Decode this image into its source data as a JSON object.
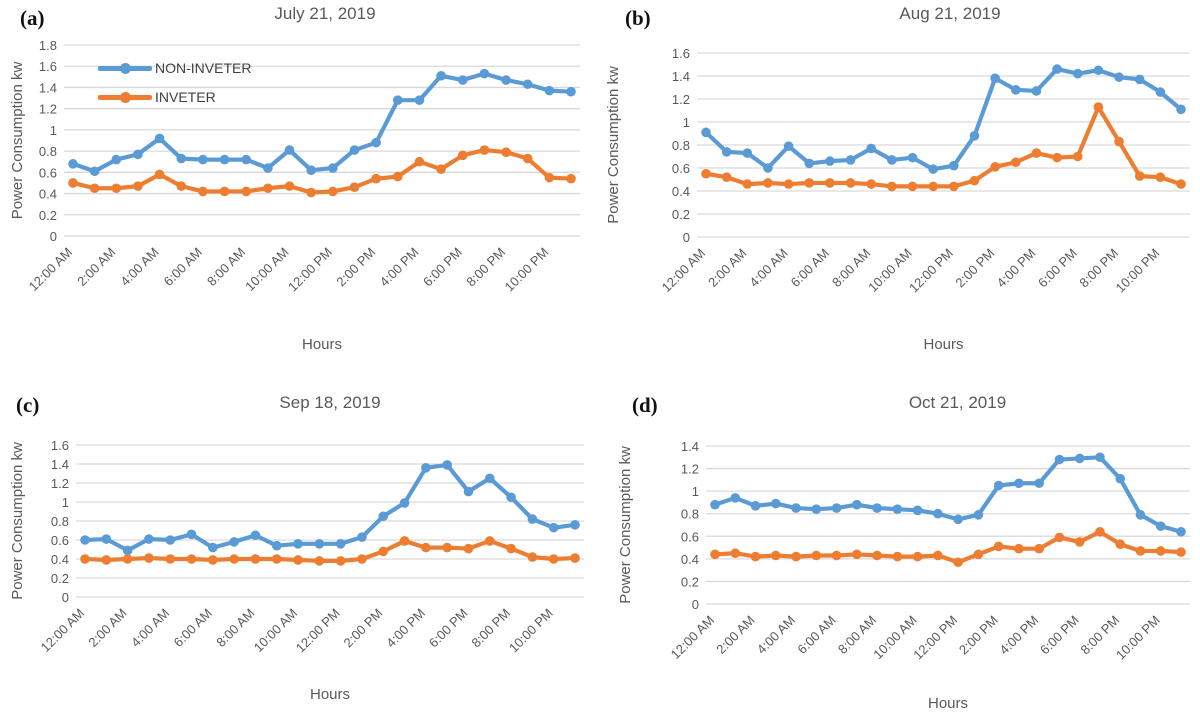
{
  "figure": {
    "background": "#ffffff",
    "grid_color": "#D9D9D9",
    "text_color": "#595959",
    "legend_text_color": "#404040"
  },
  "chart_data": [
    {
      "id": "a",
      "panel_label": "(a)",
      "type": "line",
      "title": "July 21, 2019",
      "xlabel": "Hours",
      "ylabel": "Power Consumption kw",
      "ylim": [
        0,
        1.8
      ],
      "ytick_step": 0.2,
      "grid": "horizontal",
      "legend_visible": true,
      "legend_position": "top-left-inside",
      "x_interval": "1 hour",
      "x_points": 24,
      "x_tick_labels": [
        "12:00 AM",
        "2:00 AM",
        "4:00 AM",
        "6:00 AM",
        "8:00 AM",
        "10:00 AM",
        "12:00 PM",
        "2:00 PM",
        "4:00 PM",
        "6:00 PM",
        "8:00 PM",
        "10:00 PM"
      ],
      "series": [
        {
          "name": "NON-INVETER",
          "color": "#5B9BD5",
          "values": [
            0.68,
            0.61,
            0.72,
            0.77,
            0.92,
            0.73,
            0.72,
            0.72,
            0.72,
            0.64,
            0.81,
            0.62,
            0.64,
            0.81,
            0.88,
            1.28,
            1.28,
            1.51,
            1.47,
            1.53,
            1.47,
            1.43,
            1.37,
            1.36
          ]
        },
        {
          "name": "INVETER",
          "color": "#ED7D31",
          "values": [
            0.5,
            0.45,
            0.45,
            0.47,
            0.58,
            0.47,
            0.42,
            0.42,
            0.42,
            0.45,
            0.47,
            0.41,
            0.42,
            0.46,
            0.54,
            0.56,
            0.7,
            0.63,
            0.76,
            0.81,
            0.79,
            0.73,
            0.55,
            0.54
          ]
        }
      ]
    },
    {
      "id": "b",
      "panel_label": "(b)",
      "type": "line",
      "title": "Aug 21, 2019",
      "xlabel": "Hours",
      "ylabel": "Power Consumption kw",
      "ylim": [
        0,
        1.6
      ],
      "ytick_step": 0.2,
      "grid": "horizontal",
      "legend_visible": false,
      "x_interval": "1 hour",
      "x_points": 24,
      "x_tick_labels": [
        "12:00 AM",
        "2:00 AM",
        "4:00 AM",
        "6:00 AM",
        "8:00 AM",
        "10:00 AM",
        "12:00 PM",
        "2:00 PM",
        "4:00 PM",
        "6:00 PM",
        "8:00 PM",
        "10:00 PM"
      ],
      "series": [
        {
          "name": "NON-INVETER",
          "color": "#5B9BD5",
          "values": [
            0.91,
            0.74,
            0.73,
            0.6,
            0.79,
            0.64,
            0.66,
            0.67,
            0.77,
            0.67,
            0.69,
            0.59,
            0.62,
            0.88,
            1.38,
            1.28,
            1.27,
            1.46,
            1.42,
            1.45,
            1.39,
            1.37,
            1.26,
            1.11
          ]
        },
        {
          "name": "INVETER",
          "color": "#ED7D31",
          "values": [
            0.55,
            0.52,
            0.46,
            0.47,
            0.46,
            0.47,
            0.47,
            0.47,
            0.46,
            0.44,
            0.44,
            0.44,
            0.44,
            0.49,
            0.61,
            0.65,
            0.73,
            0.69,
            0.7,
            1.13,
            0.83,
            0.53,
            0.52,
            0.46
          ]
        }
      ]
    },
    {
      "id": "c",
      "panel_label": "(c)",
      "type": "line",
      "title": "Sep 18, 2019",
      "xlabel": "Hours",
      "ylabel": "Power Consumption kw",
      "ylim": [
        0,
        1.6
      ],
      "ytick_step": 0.2,
      "grid": "horizontal",
      "legend_visible": false,
      "x_interval": "1 hour",
      "x_points": 24,
      "x_tick_labels": [
        "12:00 AM",
        "2:00 AM",
        "4:00 AM",
        "6:00 AM",
        "8:00 AM",
        "10:00 AM",
        "12:00 PM",
        "2:00 PM",
        "4:00 PM",
        "6:00 PM",
        "8:00 PM",
        "10:00 PM"
      ],
      "series": [
        {
          "name": "NON-INVETER",
          "color": "#5B9BD5",
          "values": [
            0.6,
            0.61,
            0.49,
            0.61,
            0.6,
            0.66,
            0.52,
            0.58,
            0.65,
            0.54,
            0.56,
            0.56,
            0.56,
            0.63,
            0.85,
            0.99,
            1.36,
            1.39,
            1.11,
            1.25,
            1.05,
            0.82,
            0.73,
            0.76
          ]
        },
        {
          "name": "INVETER",
          "color": "#ED7D31",
          "values": [
            0.4,
            0.39,
            0.4,
            0.41,
            0.4,
            0.4,
            0.39,
            0.4,
            0.4,
            0.4,
            0.39,
            0.38,
            0.38,
            0.4,
            0.48,
            0.59,
            0.52,
            0.52,
            0.51,
            0.59,
            0.51,
            0.42,
            0.4,
            0.41
          ]
        }
      ]
    },
    {
      "id": "d",
      "panel_label": "(d)",
      "type": "line",
      "title": "Oct 21, 2019",
      "xlabel": "Hours",
      "ylabel": "Power Consumption kw",
      "ylim": [
        0,
        1.4
      ],
      "ytick_step": 0.2,
      "grid": "horizontal",
      "legend_visible": false,
      "x_interval": "1 hour",
      "x_points": 24,
      "x_tick_labels": [
        "12:00 AM",
        "2:00 AM",
        "4:00 AM",
        "6:00 AM",
        "8:00 AM",
        "10:00 AM",
        "12:00 PM",
        "2:00 PM",
        "4:00 PM",
        "6:00 PM",
        "8:00 PM",
        "10:00 PM"
      ],
      "series": [
        {
          "name": "NON-INVETER",
          "color": "#5B9BD5",
          "values": [
            0.88,
            0.94,
            0.87,
            0.89,
            0.85,
            0.84,
            0.85,
            0.88,
            0.85,
            0.84,
            0.83,
            0.8,
            0.75,
            0.79,
            1.05,
            1.07,
            1.07,
            1.28,
            1.29,
            1.3,
            1.11,
            0.79,
            0.69,
            0.64
          ]
        },
        {
          "name": "INVETER",
          "color": "#ED7D31",
          "values": [
            0.44,
            0.45,
            0.42,
            0.43,
            0.42,
            0.43,
            0.43,
            0.44,
            0.43,
            0.42,
            0.42,
            0.43,
            0.37,
            0.44,
            0.51,
            0.49,
            0.49,
            0.59,
            0.55,
            0.64,
            0.53,
            0.47,
            0.47,
            0.46
          ]
        }
      ]
    }
  ]
}
